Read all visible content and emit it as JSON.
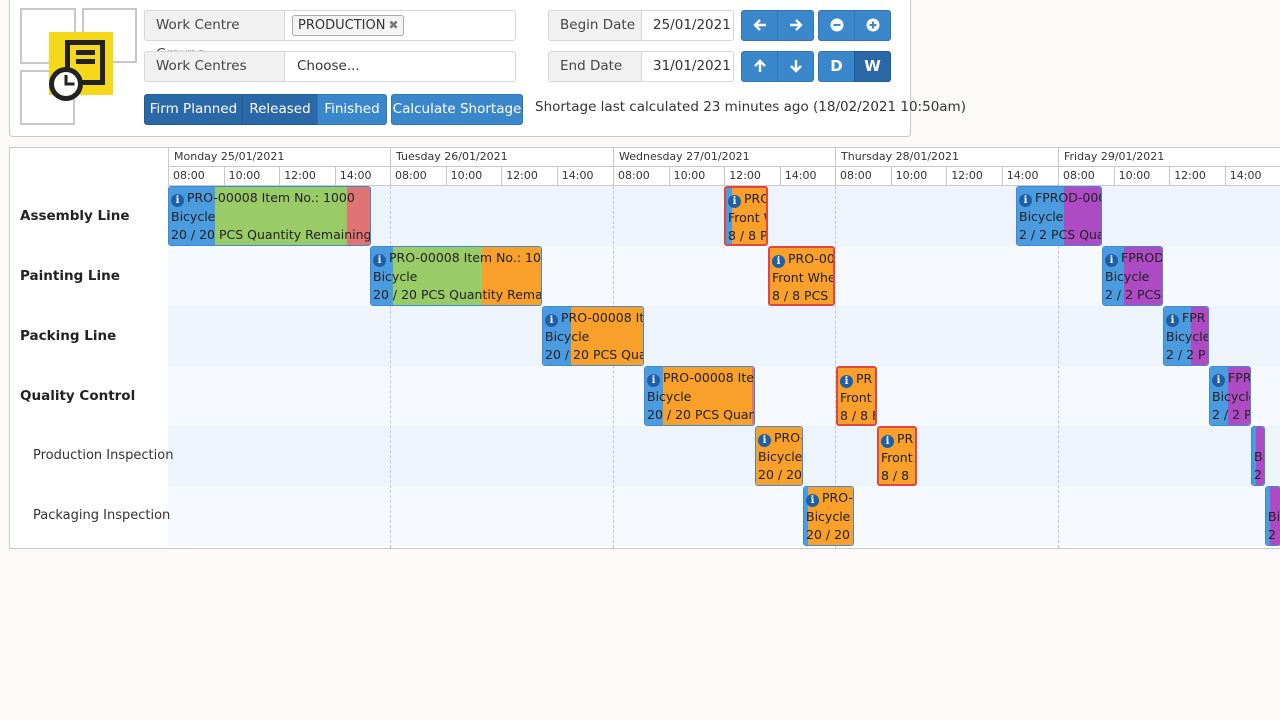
{
  "filters": {
    "work_centre_groups_label": "Work Centre Groups",
    "work_centre_groups_tag": "PRODUCTION",
    "work_centres_label": "Work Centres",
    "work_centres_placeholder": "Choose...",
    "begin_date_label": "Begin Date",
    "begin_date_value": "25/01/2021",
    "end_date_label": "End Date",
    "end_date_value": "31/01/2021"
  },
  "view_buttons": {
    "day": "D",
    "week": "W"
  },
  "status_buttons": {
    "firm_planned": "Firm Planned",
    "released": "Released",
    "finished": "Finished"
  },
  "calculate_shortage_label": "Calculate Shortage",
  "shortage_info": "Shortage last calculated 23 minutes ago (18/02/2021 10:50am)",
  "colors": {
    "blue": "#4a9be0",
    "green": "#99cc66",
    "orange": "#f9a02a",
    "red": "#e07474",
    "purple": "#ad4ac4",
    "row_a": "#eef4fb",
    "row_b": "#f6f9fd"
  },
  "timeline": {
    "days": [
      "Monday 25/01/2021",
      "Tuesday 26/01/2021",
      "Wednesday 27/01/2021",
      "Thursday 28/01/2021",
      "Friday 29/01/2021"
    ],
    "hours": [
      "08:00",
      "10:00",
      "12:00",
      "14:00"
    ]
  },
  "rows": [
    {
      "name": "Assembly Line",
      "type": "group"
    },
    {
      "name": "Painting Line",
      "type": "group"
    },
    {
      "name": "Packing Line",
      "type": "group"
    },
    {
      "name": "Quality Control",
      "type": "group"
    },
    {
      "name": "Production Inspection",
      "type": "sub"
    },
    {
      "name": "Packaging Inspection",
      "type": "sub"
    }
  ],
  "bars": [
    {
      "row": 0,
      "line1": "PRO-00008 Item No.: 1000",
      "line2": "Bicycle",
      "line3": "20 / 20 PCS Quantity Remaining"
    },
    {
      "row": 0,
      "line1": "PRO",
      "line2": "Front W",
      "line3": "8 / 8 P"
    },
    {
      "row": 0,
      "line1": "FPROD-000",
      "line2": "Bicycle",
      "line3": "2 / 2 PCS Quan"
    },
    {
      "row": 1,
      "line1": "PRO-00008 Item No.: 100",
      "line2": "Bicycle",
      "line3": "20 / 20 PCS Quantity Remain"
    },
    {
      "row": 1,
      "line1": "PRO-00",
      "line2": "Front Whe",
      "line3": "8 / 8 PCS"
    },
    {
      "row": 1,
      "line1": "FPROD",
      "line2": "Bicycle",
      "line3": "2 / 2 PCS"
    },
    {
      "row": 2,
      "line1": "PRO-00008 Ite",
      "line2": "Bicycle",
      "line3": "20 / 20 PCS Quan"
    },
    {
      "row": 2,
      "line1": "FPR",
      "line2": "Bicycle",
      "line3": "2 / 2 P"
    },
    {
      "row": 3,
      "line1": "PRO-00008 Iter",
      "line2": "Bicycle",
      "line3": "20 / 20 PCS Quant"
    },
    {
      "row": 3,
      "line1": "PR",
      "line2": "Front",
      "line3": "8 / 8 F"
    },
    {
      "row": 3,
      "line1": "FPR",
      "line2": "Bicycle",
      "line3": "2 / 2 P"
    },
    {
      "row": 4,
      "line1": "PRO-",
      "line2": "Bicycle",
      "line3": "20 / 20"
    },
    {
      "row": 4,
      "line1": "PR",
      "line2": "Front",
      "line3": "8 / 8"
    },
    {
      "row": 4,
      "line1": "",
      "line2": "Bi",
      "line3": "2"
    },
    {
      "row": 5,
      "line1": "PRO-",
      "line2": "Bicycle",
      "line3": "20 / 20 I"
    },
    {
      "row": 5,
      "line1": "",
      "line2": "Bi",
      "line3": "2"
    }
  ]
}
